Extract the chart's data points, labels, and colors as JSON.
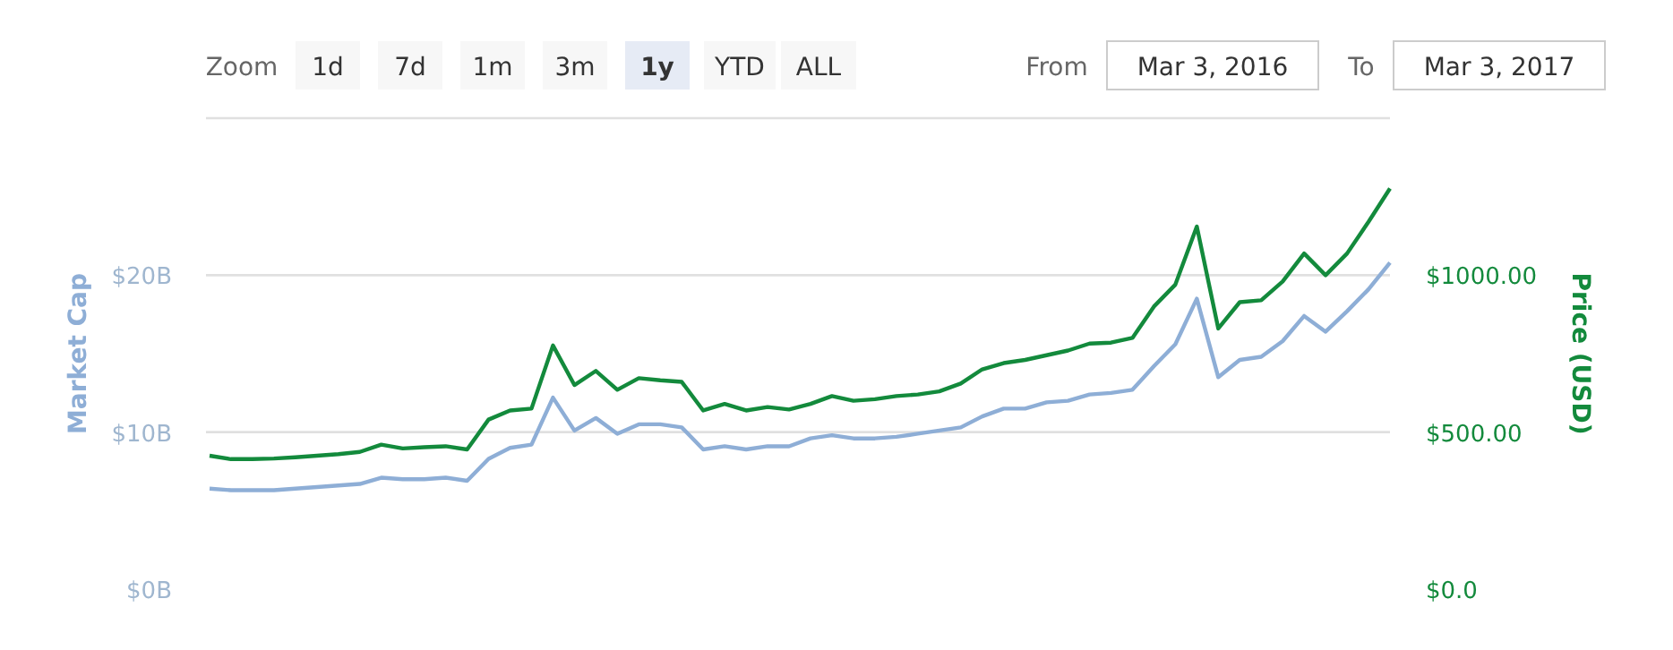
{
  "chart_data": {
    "type": "line",
    "ylabel": "Market Cap",
    "y2label": "Price (USD)",
    "categories": [
      null,
      null,
      null,
      null,
      null,
      null,
      null,
      null,
      null,
      null,
      null,
      null,
      null,
      null,
      null,
      null,
      null,
      null,
      null,
      null,
      null,
      null,
      null,
      null,
      null,
      null,
      null,
      null,
      null,
      null,
      null,
      null,
      null,
      null,
      null,
      null,
      null,
      null,
      null,
      null,
      null,
      null,
      null,
      null,
      null,
      null,
      null,
      null,
      null,
      null,
      null,
      null,
      null,
      null,
      null,
      null
    ],
    "series": [
      {
        "name": null,
        "color": "#8eaed6",
        "values": [
          6.4,
          6.3,
          6.3,
          6.3,
          6.4,
          6.5,
          6.6,
          6.7,
          7.1,
          7.0,
          7.0,
          7.1,
          6.9,
          8.3,
          9.0,
          9.2,
          12.2,
          10.1,
          10.9,
          9.9,
          10.5,
          10.5,
          10.3,
          8.9,
          9.1,
          8.9,
          9.1,
          9.1,
          9.6,
          9.8,
          9.6,
          9.6,
          9.7,
          9.9,
          10.1,
          10.3,
          11.0,
          11.5,
          11.5,
          11.9,
          12.0,
          12.4,
          12.5,
          12.7,
          14.2,
          15.6,
          18.5,
          13.5,
          14.6,
          14.8,
          15.8,
          17.4,
          16.4,
          17.7,
          19.1,
          20.8
        ]
      },
      {
        "name": null,
        "color": "#138a3c",
        "axis": "y2",
        "values": [
          425,
          414,
          414,
          416,
          420,
          425,
          430,
          437,
          460,
          448,
          452,
          455,
          445,
          540,
          569,
          575,
          776,
          650,
          695,
          635,
          672,
          665,
          660,
          569,
          590,
          569,
          580,
          572,
          590,
          615,
          600,
          605,
          615,
          620,
          630,
          655,
          700,
          720,
          730,
          745,
          760,
          782,
          785,
          800,
          900,
          970,
          1155,
          830,
          914,
          920,
          980,
          1069,
          1000,
          1069,
          1170,
          1276
        ]
      }
    ],
    "ylim": [
      0,
      30
    ],
    "yticks": [
      {
        "value": 0,
        "label": "$0B"
      },
      {
        "value": 10,
        "label": "$10B"
      },
      {
        "value": 20,
        "label": "$20B"
      },
      {
        "value": 30,
        "label": null
      }
    ],
    "y2lim": [
      0,
      1500
    ],
    "y2ticks": [
      {
        "value": 0,
        "label": "$0.0"
      },
      {
        "value": 500,
        "label": "$500.00"
      },
      {
        "value": 1000,
        "label": "$1000.00"
      }
    ],
    "grid": "y",
    "tick_labels": "y",
    "marker": "none",
    "line_style": "solid",
    "annotations": [
      "Zoom",
      "1d",
      "7d",
      "1m",
      "3m",
      "1y",
      "YTD",
      "ALL",
      "From",
      "Mar 3, 2016",
      "To",
      "Mar 3, 2017"
    ]
  }
}
